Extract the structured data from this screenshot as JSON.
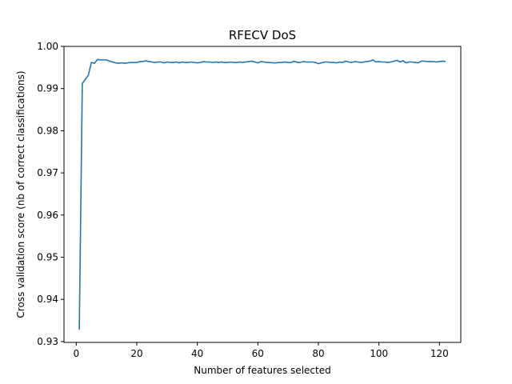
{
  "chart_data": {
    "type": "line",
    "title": "RFECV DoS",
    "xlabel": "Number of features selected",
    "ylabel": "Cross validation score (nb of correct classifications)",
    "xlim": [
      -4.05,
      127.05
    ],
    "ylim": [
      0.9298,
      1.0
    ],
    "xticks": [
      0,
      20,
      40,
      60,
      80,
      100,
      120
    ],
    "yticks": [
      0.93,
      0.94,
      0.95,
      0.96,
      0.97,
      0.98,
      0.99,
      1.0
    ],
    "ytick_labels": [
      "0.93",
      "0.94",
      "0.95",
      "0.96",
      "0.97",
      "0.98",
      "0.99",
      "1.00"
    ],
    "grid": false,
    "series": [
      {
        "color": "#1f77b4",
        "x": [
          1,
          2,
          3,
          4,
          5,
          6,
          7,
          8,
          9,
          10,
          11,
          12,
          13,
          14,
          15,
          16,
          17,
          18,
          19,
          20,
          21,
          22,
          23,
          24,
          25,
          26,
          27,
          28,
          29,
          30,
          31,
          32,
          33,
          34,
          35,
          36,
          37,
          38,
          39,
          40,
          41,
          42,
          43,
          44,
          45,
          46,
          47,
          48,
          49,
          50,
          51,
          52,
          53,
          54,
          55,
          56,
          57,
          58,
          59,
          60,
          61,
          62,
          63,
          64,
          65,
          66,
          67,
          68,
          69,
          70,
          71,
          72,
          73,
          74,
          75,
          76,
          77,
          78,
          79,
          80,
          81,
          82,
          83,
          84,
          85,
          86,
          87,
          88,
          89,
          90,
          91,
          92,
          93,
          94,
          95,
          96,
          97,
          98,
          99,
          100,
          101,
          102,
          103,
          104,
          105,
          106,
          107,
          108,
          109,
          110,
          111,
          112,
          113,
          114,
          115,
          116,
          117,
          118,
          119,
          120,
          121,
          122
        ],
        "values": [
          0.9328,
          0.9912,
          0.9922,
          0.9932,
          0.9962,
          0.996,
          0.9969,
          0.9968,
          0.9968,
          0.9968,
          0.9965,
          0.9963,
          0.9961,
          0.996,
          0.9961,
          0.996,
          0.9961,
          0.9962,
          0.9962,
          0.9962,
          0.9964,
          0.9964,
          0.9966,
          0.9964,
          0.9963,
          0.9962,
          0.9963,
          0.9963,
          0.9961,
          0.9963,
          0.9962,
          0.9962,
          0.9963,
          0.9961,
          0.9963,
          0.9962,
          0.9962,
          0.9963,
          0.9962,
          0.9961,
          0.9962,
          0.9964,
          0.9963,
          0.9963,
          0.9962,
          0.9963,
          0.9962,
          0.9963,
          0.9962,
          0.9962,
          0.9963,
          0.9962,
          0.9962,
          0.9963,
          0.9962,
          0.9963,
          0.9964,
          0.9965,
          0.9963,
          0.9961,
          0.9964,
          0.9963,
          0.9962,
          0.9962,
          0.9961,
          0.9961,
          0.9962,
          0.9962,
          0.9963,
          0.9962,
          0.9962,
          0.9965,
          0.9962,
          0.9962,
          0.9964,
          0.9963,
          0.9963,
          0.9963,
          0.9962,
          0.9959,
          0.9961,
          0.9963,
          0.9963,
          0.9962,
          0.9962,
          0.9961,
          0.9963,
          0.9962,
          0.9965,
          0.9963,
          0.9962,
          0.9964,
          0.9963,
          0.9962,
          0.9963,
          0.9964,
          0.9965,
          0.9968,
          0.9963,
          0.9964,
          0.9963,
          0.9963,
          0.9962,
          0.9963,
          0.9965,
          0.9967,
          0.9963,
          0.9966,
          0.9961,
          0.9963,
          0.9963,
          0.9962,
          0.9961,
          0.9965,
          0.9965,
          0.9964,
          0.9964,
          0.9964,
          0.9963,
          0.9964,
          0.9965,
          0.9964
        ]
      }
    ]
  }
}
